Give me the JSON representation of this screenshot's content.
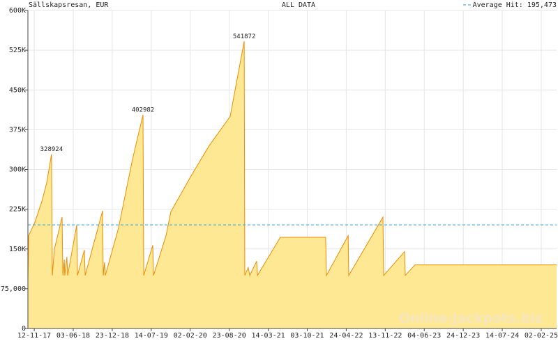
{
  "chart_data": {
    "type": "area",
    "title": "Sällskapsresan, EUR",
    "subtitle": "ALL DATA",
    "watermark": "Online-Jackpots.biz",
    "line_color": "#f08c00",
    "fill_color": "#fee894",
    "label_color": "#aa0000",
    "grid": true,
    "average": {
      "value": 195473,
      "label": "Average Hit: 195,473",
      "color": "#2a9ad8"
    },
    "x": [
      "10-10-17",
      "14-10-17",
      "15-11-17",
      "22-12-17",
      "16-01-18",
      "10-02-18",
      "14-02-18",
      "25-02-18",
      "06-04-18",
      "10-04-18",
      "17-04-18",
      "20-04-18",
      "01-05-18",
      "05-05-18",
      "21-06-18",
      "25-06-18",
      "31-07-18",
      "04-08-18",
      "03-11-18",
      "06-11-18",
      "13-11-18",
      "17-11-18",
      "25-01-19",
      "08-04-19",
      "01-06-19",
      "05-06-19",
      "22-07-19",
      "26-07-19",
      "29-09-19",
      "24-10-19",
      "10-02-20",
      "11-05-20",
      "28-08-20",
      "03-10-20",
      "09-11-20",
      "12-11-20",
      "30-11-20",
      "08-12-20",
      "13-01-21",
      "17-01-21",
      "16-05-21",
      "07-01-22",
      "11-01-22",
      "04-05-22",
      "07-05-22",
      "01-11-22",
      "05-11-22",
      "22-02-23",
      "25-02-23",
      "17-04-23",
      "23-04-25"
    ],
    "values": [
      90000,
      175000,
      200000,
      240000,
      275000,
      328924,
      100000,
      150000,
      210000,
      100000,
      130000,
      100000,
      135000,
      100000,
      195000,
      100000,
      148000,
      100000,
      222000,
      100000,
      125000,
      100000,
      190000,
      320000,
      402982,
      100000,
      157000,
      100000,
      175000,
      220000,
      290000,
      345000,
      400000,
      470000,
      541872,
      100000,
      115000,
      100000,
      127000,
      100000,
      172000,
      172000,
      100000,
      175000,
      100000,
      210000,
      100000,
      145000,
      100000,
      120000,
      120000
    ],
    "value_labels": [
      null,
      null,
      null,
      null,
      null,
      "328924",
      null,
      null,
      null,
      null,
      null,
      null,
      null,
      null,
      null,
      null,
      null,
      null,
      null,
      null,
      null,
      null,
      null,
      null,
      "402982",
      null,
      null,
      null,
      null,
      null,
      null,
      null,
      null,
      null,
      "541872",
      null,
      null,
      null,
      null,
      null,
      null,
      null,
      null,
      null,
      null,
      null,
      null,
      null,
      null,
      null,
      null
    ],
    "xlim": [
      "10-10-17",
      "23-04-25"
    ],
    "xticks": [
      "12-11-17",
      "03-06-18",
      "23-12-18",
      "14-07-19",
      "02-02-20",
      "23-08-20",
      "14-03-21",
      "03-10-21",
      "24-04-22",
      "13-11-22",
      "04-06-23",
      "24-12-23",
      "14-07-24",
      "02-02-25"
    ],
    "ylim": [
      0,
      600000
    ],
    "yticks": [
      0,
      {
        "value": 75000,
        "label": "75,000"
      },
      {
        "value": 150000,
        "label": "150K"
      },
      {
        "value": 225000,
        "label": "225K"
      },
      {
        "value": 300000,
        "label": "300K"
      },
      {
        "value": 375000,
        "label": "375K"
      },
      {
        "value": 450000,
        "label": "450K"
      },
      {
        "value": 525000,
        "label": "525K"
      },
      {
        "value": 600000,
        "label": "600K"
      }
    ]
  }
}
